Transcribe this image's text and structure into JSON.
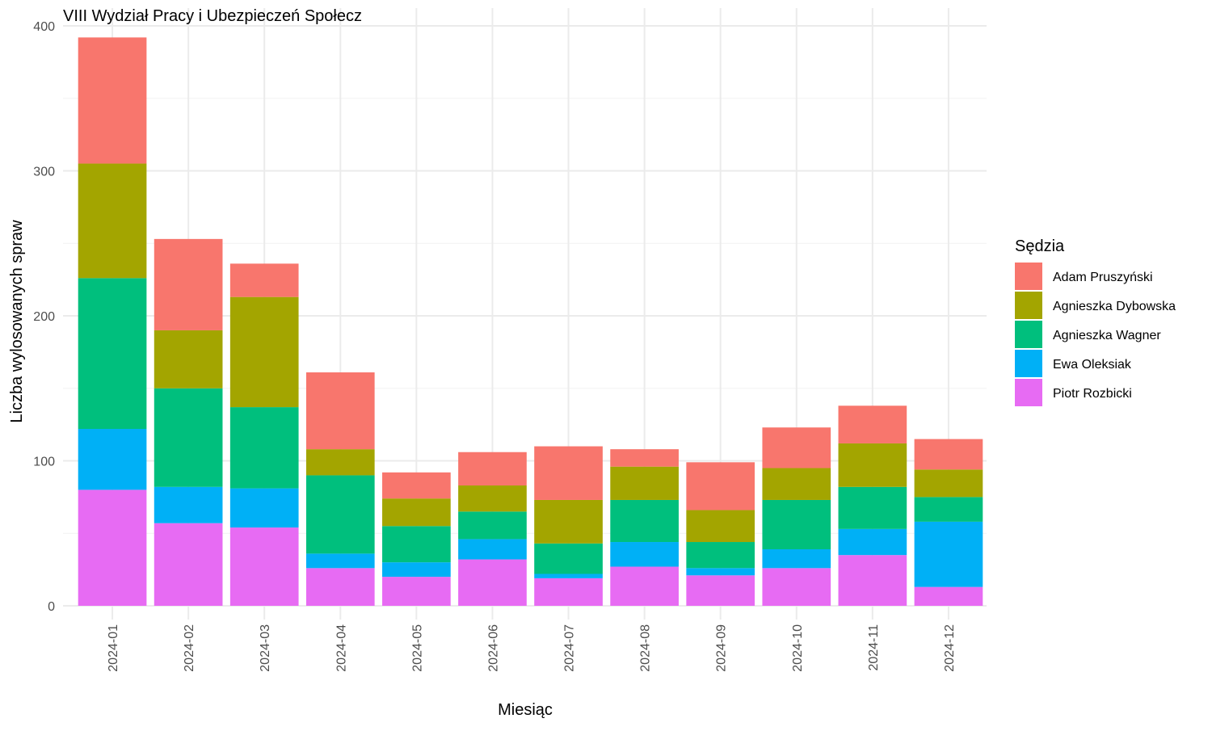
{
  "chart_data": {
    "type": "bar",
    "stacked": true,
    "title": "VIII Wydział Pracy i Ubezpieczeń Społecz",
    "xlabel": "Miesiąc",
    "ylabel": "Liczba wylosowanych spraw",
    "ylim": [
      0,
      400
    ],
    "yticks": [
      0,
      100,
      200,
      300,
      400
    ],
    "grid": true,
    "legend": {
      "title": "Sędzia",
      "position": "right"
    },
    "categories": [
      "2024-01",
      "2024-02",
      "2024-03",
      "2024-04",
      "2024-05",
      "2024-06",
      "2024-07",
      "2024-08",
      "2024-09",
      "2024-10",
      "2024-11",
      "2024-12"
    ],
    "series": [
      {
        "name": "Piotr Rozbicki",
        "color": "#E76BF3",
        "values": [
          80,
          57,
          54,
          26,
          20,
          32,
          19,
          27,
          21,
          26,
          35,
          13
        ]
      },
      {
        "name": "Ewa Oleksiak",
        "color": "#00B0F6",
        "values": [
          42,
          25,
          27,
          10,
          10,
          14,
          3,
          17,
          5,
          13,
          18,
          45
        ]
      },
      {
        "name": "Agnieszka Wagner",
        "color": "#00BF7D",
        "values": [
          104,
          68,
          56,
          54,
          25,
          19,
          21,
          29,
          18,
          34,
          29,
          17
        ]
      },
      {
        "name": "Agnieszka Dybowska",
        "color": "#A3A500",
        "values": [
          79,
          40,
          76,
          18,
          19,
          18,
          30,
          23,
          22,
          22,
          30,
          19
        ]
      },
      {
        "name": "Adam Pruszyński",
        "color": "#F8766D",
        "values": [
          87,
          63,
          23,
          53,
          18,
          23,
          37,
          12,
          33,
          28,
          26,
          21
        ]
      }
    ],
    "legend_order": [
      "Adam Pruszyński",
      "Agnieszka Dybowska",
      "Agnieszka Wagner",
      "Ewa Oleksiak",
      "Piotr Rozbicki"
    ]
  }
}
